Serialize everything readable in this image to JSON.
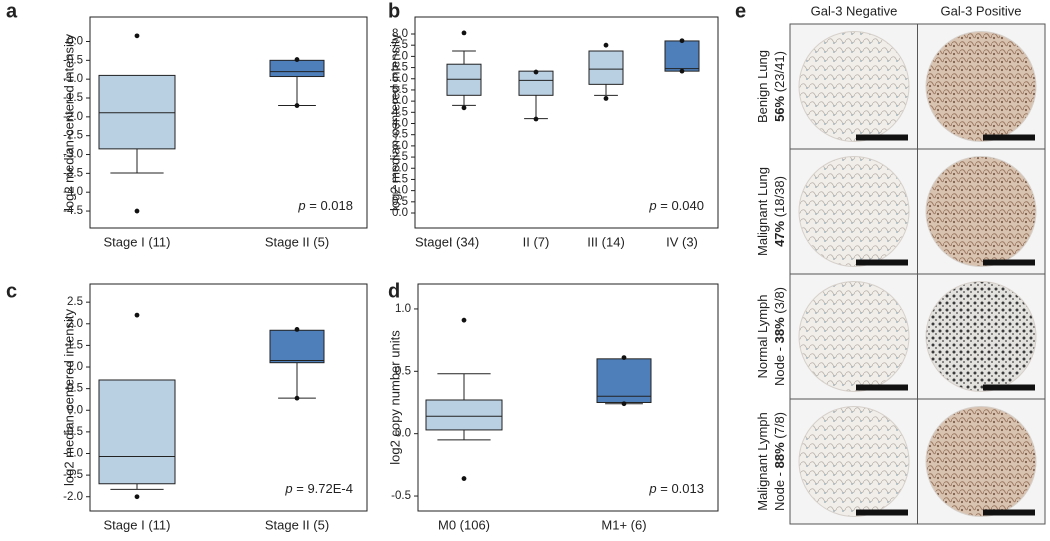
{
  "chart_data": [
    {
      "type": "box",
      "panel": "a",
      "ylabel": "log2 median-centered intensity",
      "ylim": [
        -4.95,
        0.65
      ],
      "yticks": [
        {
          "value": 0,
          "label": "0.0"
        },
        -0.5,
        {
          "value": -1,
          "label": "-1.0"
        },
        -1.5,
        {
          "value": -2,
          "label": "-2.0"
        },
        -2.5,
        {
          "value": -3,
          "label": "-3.0"
        },
        -3.5,
        {
          "value": -4,
          "label": "-4.0"
        },
        -4.5
      ],
      "categories": [
        "Stage I (11)",
        "Stage II (5)"
      ],
      "boxes": [
        {
          "color": "#b9cfe2",
          "whisker_low": -3.49,
          "q1": -2.85,
          "median": -1.89,
          "q3": -0.9,
          "outliers": [
            0.15,
            -4.5
          ]
        },
        {
          "color": "#4f7fba",
          "whisker_low": -1.7,
          "q1": -0.93,
          "median": -0.8,
          "q3": -0.5,
          "outliers": [
            -0.48,
            -1.7
          ]
        }
      ],
      "pvalue_symbol": "p",
      "pvalue_text": " = 0.018"
    },
    {
      "type": "box",
      "panel": "b",
      "ylabel": "log2 median-centered intensity",
      "ylim": [
        -0.67,
        8.76
      ],
      "yticks": [
        {
          "value": 0,
          "label": "0.0"
        },
        0.5,
        {
          "value": 1,
          "label": "1.0"
        },
        1.5,
        {
          "value": 2,
          "label": "2.0"
        },
        2.5,
        {
          "value": 3,
          "label": "3.0"
        },
        3.5,
        {
          "value": 4,
          "label": "4.0"
        },
        4.5,
        {
          "value": 5,
          "label": "5.0"
        },
        5.5,
        {
          "value": 6,
          "label": "6.0"
        },
        6.5,
        {
          "value": 7,
          "label": "7.0"
        },
        7.5,
        {
          "value": 8,
          "label": "8.0"
        }
      ],
      "xlabel": "Stage:",
      "categories": [
        "I (34)",
        "II (7)",
        "III (14)",
        "IV (3)"
      ],
      "boxes": [
        {
          "color": "#b9cfe2",
          "whisker_low": 4.81,
          "q1": 5.26,
          "median": 5.98,
          "q3": 6.65,
          "whisker_high": 7.24,
          "outliers": [
            8.05,
            4.7
          ]
        },
        {
          "color": "#b9cfe2",
          "whisker_low": 4.22,
          "q1": 5.26,
          "median": 5.93,
          "q3": 6.34,
          "outliers": [
            6.3,
            4.2
          ]
        },
        {
          "color": "#b9cfe2",
          "whisker_low": 5.26,
          "q1": 5.75,
          "median": 6.43,
          "q3": 7.24,
          "outliers": [
            7.5,
            5.12
          ]
        },
        {
          "color": "#4f7fba",
          "q1": 6.34,
          "median": 6.45,
          "q3": 7.69,
          "outliers": [
            7.7,
            6.34
          ]
        }
      ],
      "pvalue_symbol": "p",
      "pvalue_text": " = 0.040"
    },
    {
      "type": "box",
      "panel": "c",
      "ylabel": "log2 median-centered intensity",
      "ylim": [
        -2.33,
        2.92
      ],
      "yticks": [
        {
          "value": -2,
          "label": "-2.0"
        },
        -1.5,
        {
          "value": -1,
          "label": "-1.0"
        },
        -0.5,
        {
          "value": 0,
          "label": "0.0"
        },
        0.5,
        {
          "value": 1,
          "label": "1.0"
        },
        1.5,
        {
          "value": 2,
          "label": "2.0"
        },
        2.5
      ],
      "categories": [
        "Stage I (11)",
        "Stage II (5)"
      ],
      "boxes": [
        {
          "color": "#b9cfe2",
          "whisker_low": -1.83,
          "q1": -1.7,
          "median": -1.07,
          "q3": 0.7,
          "outliers": [
            2.2,
            -2.0
          ]
        },
        {
          "color": "#4f7fba",
          "whisker_low": 0.28,
          "q1": 1.1,
          "median": 1.15,
          "q3": 1.85,
          "outliers": [
            1.87,
            0.28
          ]
        }
      ],
      "pvalue_symbol": "p",
      "pvalue_text": " = 9.72E-4"
    },
    {
      "type": "box",
      "panel": "d",
      "ylabel": "log2 copy number units",
      "ylim": [
        -0.62,
        1.2
      ],
      "yticks": [
        -0.5,
        {
          "value": 0,
          "label": "0.0"
        },
        0.5,
        {
          "value": 1,
          "label": "1.0"
        }
      ],
      "categories": [
        "M0 (106)",
        "M1+ (6)"
      ],
      "boxes": [
        {
          "color": "#b9cfe2",
          "whisker_low": -0.05,
          "q1": 0.03,
          "median": 0.14,
          "q3": 0.27,
          "whisker_high": 0.48,
          "outliers": [
            0.91,
            -0.36
          ]
        },
        {
          "color": "#4f7fba",
          "whisker_low": 0.24,
          "q1": 0.25,
          "median": 0.3,
          "q3": 0.6,
          "outliers": [
            0.61,
            0.24
          ]
        }
      ],
      "pvalue_symbol": "p",
      "pvalue_text": " = 0.013"
    }
  ],
  "panel_e": {
    "label": "e",
    "columns": [
      "Gal-3 Negative",
      "Gal-3 Positive"
    ],
    "rows": [
      {
        "lines": [
          [
            {
              "text": "Benign Lung"
            }
          ],
          [
            {
              "text": "56%",
              "bold": true
            },
            {
              "text": " (23/41)"
            }
          ]
        ]
      },
      {
        "lines": [
          [
            {
              "text": "Malignant Lung"
            }
          ],
          [
            {
              "text": "47%",
              "bold": true
            },
            {
              "text": " (18/38)"
            }
          ]
        ]
      },
      {
        "lines": [
          [
            {
              "text": "Normal Lymph"
            }
          ],
          [
            {
              "text": "Node - "
            },
            {
              "text": "38%",
              "bold": true
            },
            {
              "text": " (3/8)"
            }
          ]
        ]
      },
      {
        "lines": [
          [
            {
              "text": "Malignant Lymph"
            }
          ],
          [
            {
              "text": "Node - "
            },
            {
              "text": "88%",
              "bold": true
            },
            {
              "text": " (7/8)"
            }
          ]
        ]
      }
    ]
  }
}
